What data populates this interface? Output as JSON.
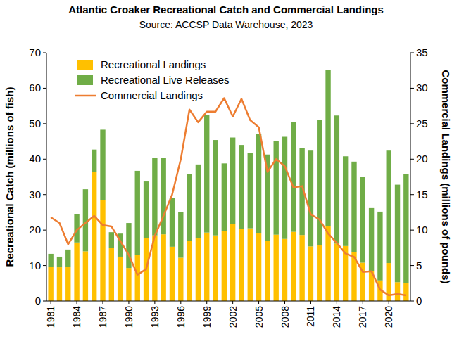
{
  "chart_data": {
    "type": "bar",
    "title": "Atlantic Croaker Recreational Catch and Commercial Landings",
    "subtitle": "Source: ACCSP Data Warehouse, 2023",
    "y_label": "Recreational Catch (millions of fish)",
    "y2_label": "Commercial Landings (millions of pounds)",
    "categories": [
      "1981",
      null,
      null,
      "1984",
      null,
      null,
      "1987",
      null,
      null,
      "1990",
      null,
      null,
      "1993",
      null,
      null,
      "1996",
      null,
      null,
      "1999",
      null,
      null,
      "2002",
      null,
      null,
      "2005",
      null,
      null,
      "2008",
      null,
      null,
      "2011",
      null,
      null,
      "2014",
      null,
      null,
      "2017",
      null,
      null,
      "2020",
      null,
      null
    ],
    "stacked": true,
    "legend": "top-left",
    "grid": false,
    "ylim": [
      0,
      70
    ],
    "yticks": [
      0,
      10,
      20,
      30,
      40,
      50,
      60,
      70
    ],
    "y2lim": [
      0,
      35
    ],
    "y2ticks": [
      0,
      5,
      10,
      15,
      20,
      25,
      30,
      35
    ],
    "series": [
      {
        "name": "Recreational Landings",
        "type": "bar",
        "color": "#ffc000",
        "values": [
          9.7,
          9.5,
          9.7,
          16.5,
          14,
          36.3,
          28.5,
          15,
          12.5,
          9.3,
          13,
          17.8,
          18.5,
          18.8,
          15.3,
          12.2,
          17,
          17.8,
          19.3,
          18.5,
          19.7,
          21.8,
          20.3,
          20.5,
          19.2,
          17,
          18.7,
          17.5,
          19.5,
          18.6,
          15.4,
          15.8,
          21.2,
          16.2,
          15.5,
          13.8,
          10.8,
          8.5,
          5.8,
          10.7,
          5.3,
          5.1
        ]
      },
      {
        "name": "Recreational Live Releases",
        "type": "bar",
        "color": "#70ad47",
        "values": [
          3.6,
          3,
          4.8,
          8,
          17.5,
          6.4,
          19.8,
          4.4,
          6.5,
          12.7,
          23.7,
          15.9,
          21.8,
          21.5,
          13.7,
          12.8,
          18.7,
          20.7,
          33.2,
          26.9,
          19.1,
          24.3,
          23.7,
          21.3,
          27.8,
          24.3,
          26.5,
          28.8,
          31,
          24.6,
          27,
          35.2,
          44,
          36.1,
          25.3,
          25.5,
          24.2,
          17.7,
          19.4,
          31.7,
          27.5,
          30.6
        ]
      },
      {
        "name": "Commercial Landings",
        "type": "line",
        "axis": "y2",
        "color": "#ed7d31",
        "values": [
          11.8,
          11,
          8,
          10,
          11,
          12,
          10.7,
          10.5,
          8.5,
          6.5,
          3.7,
          4.5,
          9.2,
          12,
          15,
          20,
          27,
          25.2,
          26.7,
          26.7,
          28.6,
          26,
          28.5,
          25.5,
          24.5,
          18.2,
          20,
          19,
          16,
          16.2,
          12.2,
          11.5,
          9.5,
          8.2,
          6.7,
          6.2,
          4.1,
          4.2,
          1.6,
          0.8,
          1,
          0.8
        ]
      }
    ]
  }
}
